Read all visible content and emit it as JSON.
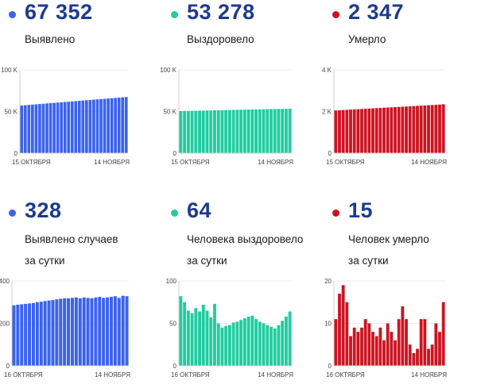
{
  "colors": {
    "blue": "#3a63ee",
    "green": "#20cca0",
    "red": "#cc1420",
    "title": "#1d3a8f",
    "axis": "#cfcfcf",
    "tick": "#444444"
  },
  "panels": [
    {
      "id": "confirmed-total",
      "color": "blue",
      "value": "67 352",
      "label": [
        "Выявлено"
      ],
      "x_start": "15 ОКТЯБРЯ",
      "x_end": "14 НОЯБРЯ"
    },
    {
      "id": "recovered-total",
      "color": "green",
      "value": "53 278",
      "label": [
        "Выздоровело"
      ],
      "x_start": "15 ОКТЯБРЯ",
      "x_end": "14 НОЯБРЯ"
    },
    {
      "id": "deaths-total",
      "color": "red",
      "value": "2 347",
      "label": [
        "Умерло"
      ],
      "x_start": "15 ОКТЯБРЯ",
      "x_end": "14 НОЯБРЯ"
    },
    {
      "id": "confirmed-daily",
      "color": "blue",
      "value": "328",
      "label": [
        "Выявлено случаев",
        "за сутки"
      ],
      "x_start": "16 ОКТЯБРЯ",
      "x_end": "14 НОЯБРЯ"
    },
    {
      "id": "recovered-daily",
      "color": "green",
      "value": "64",
      "label": [
        "Человека выздоровело",
        "за сутки"
      ],
      "x_start": "16 ОКТЯБРЯ",
      "x_end": "14 НОЯБРЯ"
    },
    {
      "id": "deaths-daily",
      "color": "red",
      "value": "15",
      "label": [
        "Человек умерло",
        "за сутки"
      ],
      "x_start": "16 ОКТЯБРЯ",
      "x_end": "14 НОЯБРЯ"
    }
  ],
  "chart_data": [
    {
      "type": "bar",
      "ylim": [
        0,
        100000
      ],
      "yticks": [
        0,
        50000,
        100000
      ],
      "ytick_labels": [
        "0",
        "50 K",
        "100 K"
      ],
      "values": [
        57200,
        57550,
        57900,
        58250,
        58600,
        58950,
        59300,
        59650,
        60000,
        60350,
        60700,
        61050,
        61400,
        61750,
        62100,
        62450,
        62800,
        63150,
        63500,
        63850,
        64200,
        64550,
        64900,
        65250,
        65600,
        65950,
        66300,
        66650,
        67000,
        67352
      ]
    },
    {
      "type": "bar",
      "ylim": [
        0,
        100000
      ],
      "yticks": [
        0,
        50000,
        100000
      ],
      "ytick_labels": [
        "0",
        "50 K",
        "100 K"
      ],
      "values": [
        50500,
        50600,
        50700,
        50800,
        50900,
        51000,
        51100,
        51200,
        51300,
        51400,
        51500,
        51600,
        51700,
        51800,
        51900,
        52000,
        52100,
        52200,
        52300,
        52400,
        52500,
        52600,
        52700,
        52800,
        52900,
        53000,
        53080,
        53150,
        53214,
        53278
      ]
    },
    {
      "type": "bar",
      "ylim": [
        0,
        4000
      ],
      "yticks": [
        0,
        2000,
        4000
      ],
      "ytick_labels": [
        "0",
        "2 K",
        "4 K"
      ],
      "values": [
        2050,
        2060,
        2070,
        2080,
        2090,
        2100,
        2110,
        2120,
        2130,
        2140,
        2150,
        2160,
        2170,
        2180,
        2190,
        2200,
        2210,
        2220,
        2230,
        2240,
        2250,
        2260,
        2270,
        2280,
        2290,
        2300,
        2310,
        2320,
        2332,
        2347
      ]
    },
    {
      "type": "bar",
      "ylim": [
        0,
        400
      ],
      "yticks": [
        0,
        200,
        400
      ],
      "ytick_labels": [
        "0",
        "200",
        "400"
      ],
      "values": [
        285,
        288,
        290,
        292,
        294,
        296,
        300,
        302,
        305,
        308,
        310,
        313,
        316,
        318,
        318,
        320,
        322,
        318,
        322,
        320,
        318,
        322,
        325,
        320,
        322,
        325,
        328,
        320,
        330,
        328
      ]
    },
    {
      "type": "bar",
      "ylim": [
        0,
        100
      ],
      "yticks": [
        0,
        50,
        100
      ],
      "ytick_labels": [
        "0",
        "50",
        "100"
      ],
      "values": [
        82,
        75,
        65,
        62,
        68,
        64,
        72,
        65,
        57,
        73,
        50,
        45,
        47,
        48,
        51,
        52,
        54,
        56,
        58,
        59,
        55,
        52,
        50,
        48,
        46,
        44,
        48,
        53,
        58,
        64
      ]
    },
    {
      "type": "bar",
      "ylim": [
        0,
        20
      ],
      "yticks": [
        0,
        10,
        20
      ],
      "ytick_labels": [
        "0",
        "10",
        "20"
      ],
      "values": [
        11,
        17,
        19,
        15,
        7,
        9,
        8,
        9,
        11,
        10,
        8,
        7,
        9,
        6,
        10,
        8,
        6,
        11,
        14,
        11,
        5,
        3,
        4,
        11,
        11,
        4,
        5,
        10,
        8,
        15
      ]
    }
  ]
}
